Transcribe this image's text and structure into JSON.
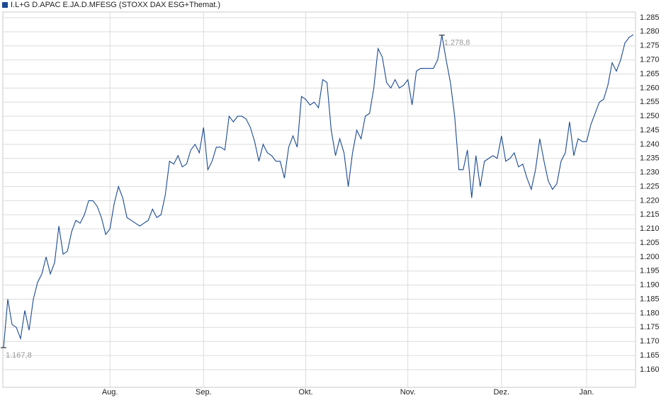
{
  "chart_data": {
    "type": "line",
    "series": [
      {
        "name": "I.L+G D.APAC E.JA.D.MFESG (STOXX DAX ESG+Themat.)",
        "color": "#1b4a92",
        "values": [
          1167.8,
          1185,
          1176,
          1175,
          1171,
          1181,
          1174,
          1185,
          1191,
          1194,
          1200,
          1194,
          1198,
          1211,
          1201,
          1202,
          1209,
          1213,
          1212,
          1215,
          1220,
          1220,
          1218,
          1214,
          1208,
          1210,
          1219,
          1225,
          1221,
          1214,
          1213,
          1212,
          1211,
          1212,
          1213,
          1217,
          1214,
          1215,
          1222,
          1234,
          1233,
          1236,
          1232,
          1233,
          1238,
          1240,
          1237,
          1246,
          1231,
          1234,
          1239,
          1239,
          1238,
          1250,
          1248,
          1250,
          1250,
          1249,
          1246,
          1241,
          1234,
          1240,
          1237,
          1236,
          1234,
          1234,
          1228,
          1239,
          1243,
          1239,
          1257,
          1256,
          1254,
          1255,
          1253,
          1263,
          1262,
          1245,
          1236,
          1242,
          1237,
          1225,
          1237,
          1245,
          1242,
          1250,
          1251,
          1260,
          1274,
          1271,
          1262,
          1260,
          1263,
          1260,
          1261,
          1263,
          1254,
          1266,
          1267,
          1267,
          1267,
          1267,
          1270,
          1278.8,
          1270,
          1262,
          1250,
          1231,
          1231,
          1238,
          1221,
          1236,
          1225,
          1234,
          1235,
          1236,
          1235,
          1243,
          1234,
          1235,
          1237,
          1232,
          1233,
          1228,
          1224,
          1231,
          1242,
          1234,
          1227,
          1224,
          1226,
          1234,
          1237,
          1248,
          1236,
          1242,
          1241,
          1241,
          1247,
          1251,
          1255,
          1256,
          1261,
          1269,
          1266,
          1270,
          1276,
          1278,
          1279
        ],
        "value_labels": [
          "1.167,8",
          null,
          null,
          null,
          null,
          null,
          null,
          null,
          null,
          null,
          null,
          null,
          null,
          null,
          null,
          null,
          null,
          null,
          null,
          null,
          null,
          null,
          null,
          null,
          null,
          null,
          null,
          null,
          null,
          null,
          null,
          null,
          null,
          null,
          null,
          null,
          null,
          null,
          null,
          null,
          null,
          null,
          null,
          null,
          null,
          null,
          null,
          null,
          null,
          null,
          null,
          null,
          null,
          null,
          null,
          null,
          null,
          null,
          null,
          null,
          null,
          null,
          null,
          null,
          null,
          null,
          null,
          null,
          null,
          null,
          null,
          null,
          null,
          null,
          null,
          null,
          null,
          null,
          null,
          null,
          null,
          null,
          null,
          null,
          null,
          null,
          null,
          null,
          null,
          null,
          null,
          null,
          null,
          null,
          null,
          null,
          null,
          null,
          null,
          null,
          null,
          null,
          null,
          "1.278,8",
          null,
          null,
          null,
          null,
          null,
          null,
          null,
          null,
          null,
          null,
          null,
          null,
          null,
          null,
          null,
          null,
          null,
          null,
          null,
          null,
          null,
          null,
          null,
          null,
          null,
          null,
          null,
          null,
          null,
          null,
          null,
          null,
          null,
          null,
          null,
          null,
          null,
          null,
          null,
          null,
          null,
          null,
          null,
          null,
          null
        ]
      }
    ],
    "categories": [
      null,
      null,
      null,
      null,
      null,
      null,
      null,
      null,
      null,
      null,
      null,
      null,
      null,
      null,
      null,
      null,
      null,
      null,
      null,
      null,
      null,
      null,
      null,
      null,
      null,
      "Aug.",
      null,
      null,
      null,
      null,
      null,
      null,
      null,
      null,
      null,
      null,
      null,
      null,
      null,
      null,
      null,
      null,
      null,
      null,
      null,
      null,
      null,
      "Sep.",
      null,
      null,
      null,
      null,
      null,
      null,
      null,
      null,
      null,
      null,
      null,
      null,
      null,
      null,
      null,
      null,
      null,
      null,
      null,
      null,
      null,
      null,
      null,
      "Okt.",
      null,
      null,
      null,
      null,
      null,
      null,
      null,
      null,
      null,
      null,
      null,
      null,
      null,
      null,
      null,
      null,
      null,
      null,
      null,
      null,
      null,
      null,
      null,
      "Nov.",
      null,
      null,
      null,
      null,
      null,
      null,
      null,
      null,
      null,
      null,
      null,
      null,
      null,
      null,
      null,
      null,
      null,
      null,
      null,
      null,
      null,
      "Dez.",
      null,
      null,
      null,
      null,
      null,
      null,
      null,
      null,
      null,
      null,
      null,
      null,
      null,
      null,
      null,
      null,
      null,
      null,
      null,
      "Jan.",
      null,
      null,
      null,
      null,
      null,
      null,
      null,
      null,
      null,
      null,
      null
    ],
    "ylim": [
      1153.7,
      1287.0
    ],
    "yticks": [
      {
        "value": 1160,
        "label": "1.160"
      },
      {
        "value": 1165,
        "label": "1.165"
      },
      {
        "value": 1170,
        "label": "1.170"
      },
      {
        "value": 1175,
        "label": "1.175"
      },
      {
        "value": 1180,
        "label": "1.180"
      },
      {
        "value": 1185,
        "label": "1.185"
      },
      {
        "value": 1190,
        "label": "1.190"
      },
      {
        "value": 1195,
        "label": "1.195"
      },
      {
        "value": 1200,
        "label": "1.200"
      },
      {
        "value": 1205,
        "label": "1.205"
      },
      {
        "value": 1210,
        "label": "1.210"
      },
      {
        "value": 1215,
        "label": "1.215"
      },
      {
        "value": 1220,
        "label": "1.220"
      },
      {
        "value": 1225,
        "label": "1.225"
      },
      {
        "value": 1230,
        "label": "1.230"
      },
      {
        "value": 1235,
        "label": "1.235"
      },
      {
        "value": 1240,
        "label": "1.240"
      },
      {
        "value": 1245,
        "label": "1.245"
      },
      {
        "value": 1250,
        "label": "1.250"
      },
      {
        "value": 1255,
        "label": "1.255"
      },
      {
        "value": 1260,
        "label": "1.260"
      },
      {
        "value": 1265,
        "label": "1.265"
      },
      {
        "value": 1270,
        "label": "1.270"
      },
      {
        "value": 1275,
        "label": "1.275"
      },
      {
        "value": 1280,
        "label": "1.280"
      },
      {
        "value": 1285,
        "label": "1.285"
      }
    ],
    "grid": true
  }
}
